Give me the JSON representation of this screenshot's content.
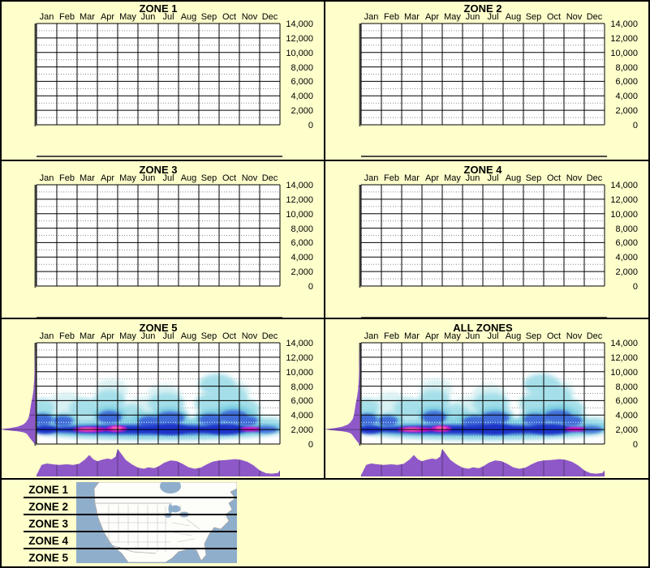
{
  "figure": {
    "background": "#FFFFCC",
    "description": "Elevational and seasonal distribution plots for five latitude zones"
  },
  "panels": [
    {
      "title": "ZONE 1",
      "has_data": false
    },
    {
      "title": "ZONE 2",
      "has_data": false
    },
    {
      "title": "ZONE 3",
      "has_data": false
    },
    {
      "title": "ZONE 4",
      "has_data": false
    },
    {
      "title": "ZONE 5",
      "has_data": true
    },
    {
      "title": "ALL ZONES",
      "has_data": true
    }
  ],
  "legend": {
    "zones": [
      "ZONE 1",
      "ZONE 2",
      "ZONE 3",
      "ZONE 4",
      "ZONE 5"
    ]
  },
  "colors": {
    "background": "#FFFFCC",
    "grid_bg": "#FFFFFF",
    "grid_line": "#000000",
    "dotted_line": "#8E8E8E",
    "dotted_line_over_heat": "#EFF8FA",
    "axis_line": "#4C4C44",
    "marginal_purple": "#8E58C8",
    "marginal_grid": "#352550",
    "map_ocean": "#8FAECB",
    "map_land": "#FDFDFA",
    "map_border": "#A9A9A9",
    "map_state_border": "#C2C2C2",
    "heat_faint": "#D9F1F3",
    "heat_light": "#A5DFE9",
    "heat_cyan": "#79CCDF",
    "heat_blue": "#3F6CD8",
    "heat_deep": "#1C30C9",
    "heat_magenta": "#DB13CE",
    "heat_pink": "#FF5BB4"
  },
  "chart_data": {
    "type": "heatmap",
    "layout": "6 small-multiple panels (2 columns x 3 rows) plus zone legend with US map; dotted gridlines every 1,000 ft, solid every 2,000 ft",
    "x": {
      "categories": [
        "Jan",
        "Feb",
        "Mar",
        "Apr",
        "May",
        "Jun",
        "Jul",
        "Aug",
        "Sep",
        "Oct",
        "Nov",
        "Dec"
      ]
    },
    "y": {
      "min": 0,
      "max": 14000,
      "solid_gridline_step": 2000,
      "dotted_gridline_step": 1000,
      "tick_labels": [
        "14,000",
        "12,000",
        "10,000",
        "8,000",
        "6,000",
        "4,000",
        "2,000",
        "0"
      ]
    },
    "empty_panels": [
      "ZONE 1",
      "ZONE 2",
      "ZONE 3",
      "ZONE 4"
    ],
    "data_panels": [
      "ZONE 5",
      "ALL ZONES"
    ],
    "data_panel_summary": "ZONE 5 and ALL ZONES show identical density: records concentrated near 2,000 ft in all months; hottest Mar-Apr and Nov; diffuse occurrence up to ~8,000 ft, peaking Sep-Oct",
    "density_blobs": [
      [
        1.5,
        5600,
        0.9,
        1500,
        "faint"
      ],
      [
        3.7,
        7600,
        0.8,
        1400,
        "faint"
      ],
      [
        5.3,
        5300,
        0.8,
        1300,
        "faint"
      ],
      [
        6.3,
        7000,
        0.8,
        1300,
        "faint"
      ],
      [
        9.8,
        7400,
        0.7,
        1300,
        "faint"
      ],
      [
        0.3,
        5000,
        0.6,
        1300,
        "light"
      ],
      [
        2.4,
        4900,
        0.8,
        1400,
        "light"
      ],
      [
        3.6,
        5900,
        0.8,
        1600,
        "light"
      ],
      [
        4.6,
        4300,
        0.7,
        1200,
        "light"
      ],
      [
        6.4,
        5600,
        0.9,
        1500,
        "light"
      ],
      [
        8.7,
        5600,
        0.9,
        1600,
        "light"
      ],
      [
        8.9,
        8200,
        0.9,
        1500,
        "light"
      ],
      [
        9.6,
        6300,
        0.8,
        1800,
        "light"
      ],
      [
        10.3,
        4900,
        0.7,
        1300,
        "light"
      ],
      [
        11.5,
        2700,
        0.7,
        1000,
        "light"
      ],
      [
        6.0,
        2100,
        6.4,
        1500,
        "cyan"
      ],
      [
        0.4,
        3300,
        0.6,
        1200,
        "cyan"
      ],
      [
        1.4,
        3200,
        0.7,
        1100,
        "cyan"
      ],
      [
        3.6,
        3900,
        0.8,
        1300,
        "cyan"
      ],
      [
        5.5,
        3300,
        0.8,
        1100,
        "cyan"
      ],
      [
        6.6,
        3800,
        0.9,
        1300,
        "cyan"
      ],
      [
        8.6,
        3600,
        0.8,
        1200,
        "cyan"
      ],
      [
        9.7,
        4000,
        0.9,
        1400,
        "cyan"
      ],
      [
        10.4,
        3400,
        0.7,
        1100,
        "cyan"
      ],
      [
        0.3,
        3400,
        0.5,
        800,
        "blue"
      ],
      [
        1.3,
        3200,
        0.5,
        700,
        "blue"
      ],
      [
        3.6,
        3700,
        0.6,
        900,
        "blue"
      ],
      [
        5.6,
        3100,
        0.6,
        800,
        "blue"
      ],
      [
        6.6,
        3600,
        0.7,
        900,
        "blue"
      ],
      [
        8.6,
        3400,
        0.6,
        800,
        "blue"
      ],
      [
        9.7,
        3800,
        0.7,
        900,
        "blue"
      ],
      [
        10.4,
        3200,
        0.5,
        700,
        "blue"
      ],
      [
        11.3,
        2000,
        0.6,
        500,
        "blue"
      ],
      [
        5.6,
        2000,
        5.5,
        650,
        "deep"
      ],
      [
        0.4,
        2000,
        0.6,
        600,
        "deep"
      ],
      [
        6.6,
        2050,
        0.9,
        750,
        "deep"
      ],
      [
        9.3,
        2050,
        1.0,
        750,
        "deep"
      ],
      [
        2.6,
        2000,
        0.8,
        340,
        "magenta"
      ],
      [
        3.2,
        2000,
        0.9,
        160,
        "magenta"
      ],
      [
        3.95,
        2100,
        0.5,
        430,
        "magenta"
      ],
      [
        10.55,
        2050,
        0.5,
        300,
        "magenta"
      ],
      [
        2.5,
        2000,
        0.45,
        220,
        "pink"
      ],
      [
        3.95,
        2150,
        0.28,
        280,
        "pink"
      ]
    ],
    "elevation_profile": [
      [
        14000,
        0
      ],
      [
        11000,
        0.015
      ],
      [
        9000,
        0.03
      ],
      [
        7500,
        0.05
      ],
      [
        6500,
        0.08
      ],
      [
        5800,
        0.11
      ],
      [
        5200,
        0.13
      ],
      [
        4600,
        0.15
      ],
      [
        4000,
        0.17
      ],
      [
        3500,
        0.2
      ],
      [
        3000,
        0.27
      ],
      [
        2700,
        0.34
      ],
      [
        2400,
        0.5
      ],
      [
        2200,
        0.72
      ],
      [
        2050,
        1.0
      ],
      [
        1900,
        0.8
      ],
      [
        1750,
        0.48
      ],
      [
        1600,
        0.32
      ],
      [
        1400,
        0.24
      ],
      [
        1100,
        0.19
      ],
      [
        800,
        0.15
      ],
      [
        500,
        0.1
      ],
      [
        250,
        0.06
      ],
      [
        0,
        0.02
      ]
    ],
    "month_profile": [
      [
        0,
        0.05
      ],
      [
        0.25,
        0.42
      ],
      [
        0.5,
        0.47
      ],
      [
        0.8,
        0.44
      ],
      [
        1.1,
        0.42
      ],
      [
        1.5,
        0.44
      ],
      [
        1.8,
        0.42
      ],
      [
        2.1,
        0.46
      ],
      [
        2.4,
        0.62
      ],
      [
        2.6,
        0.78
      ],
      [
        2.8,
        0.62
      ],
      [
        3.0,
        0.55
      ],
      [
        3.2,
        0.6
      ],
      [
        3.5,
        0.65
      ],
      [
        3.7,
        0.62
      ],
      [
        3.9,
        0.72
      ],
      [
        4.0,
        1.0
      ],
      [
        4.15,
        0.85
      ],
      [
        4.4,
        0.6
      ],
      [
        4.7,
        0.44
      ],
      [
        5.0,
        0.32
      ],
      [
        5.3,
        0.28
      ],
      [
        5.5,
        0.33
      ],
      [
        5.8,
        0.3
      ],
      [
        6.0,
        0.36
      ],
      [
        6.3,
        0.5
      ],
      [
        6.6,
        0.58
      ],
      [
        6.9,
        0.56
      ],
      [
        7.2,
        0.46
      ],
      [
        7.5,
        0.33
      ],
      [
        7.8,
        0.28
      ],
      [
        8.1,
        0.32
      ],
      [
        8.4,
        0.44
      ],
      [
        8.7,
        0.54
      ],
      [
        9.0,
        0.58
      ],
      [
        9.4,
        0.6
      ],
      [
        9.8,
        0.63
      ],
      [
        10.1,
        0.6
      ],
      [
        10.4,
        0.53
      ],
      [
        10.7,
        0.4
      ],
      [
        11.0,
        0.22
      ],
      [
        11.3,
        0.12
      ],
      [
        11.6,
        0.1
      ],
      [
        11.9,
        0.13
      ],
      [
        12,
        0.22
      ]
    ]
  }
}
